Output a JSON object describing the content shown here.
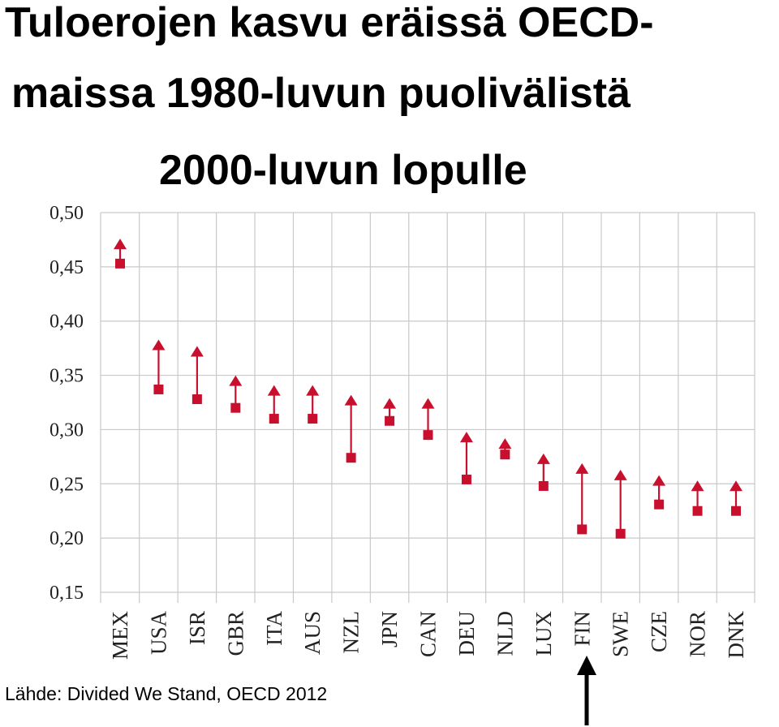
{
  "title_lines": [
    "Tuloerojen kasvu eräissä OECD-",
    "maissa 1980-luvun puolivälistä",
    "2000-luvun lopulle"
  ],
  "source": "Lähde: Divided We Stand, OECD 2012",
  "highlight": "FIN",
  "colors": {
    "marker": "#c8102e",
    "grid": "#c9c9c9",
    "text": "#000000",
    "highlight_arrow": "#000000"
  },
  "chart_data": {
    "type": "scatter",
    "categories": [
      "MEX",
      "USA",
      "ISR",
      "GBR",
      "ITA",
      "AUS",
      "NZL",
      "JPN",
      "CAN",
      "DEU",
      "NLD",
      "LUX",
      "FIN",
      "SWE",
      "CZE",
      "NOR",
      "DNK"
    ],
    "series": [
      {
        "values": [
          0.453,
          0.337,
          0.328,
          0.32,
          0.31,
          0.31,
          0.274,
          0.308,
          0.295,
          0.254,
          0.277,
          0.248,
          0.208,
          0.204,
          0.231,
          0.225,
          0.225
        ]
      },
      {
        "values": [
          0.476,
          0.383,
          0.377,
          0.35,
          0.341,
          0.341,
          0.332,
          0.329,
          0.329,
          0.298,
          0.292,
          0.278,
          0.269,
          0.263,
          0.258,
          0.253,
          0.253
        ]
      }
    ],
    "yticks": [
      "0,15",
      "0,20",
      "0,25",
      "0,30",
      "0,35",
      "0,40",
      "0,45",
      "0,50"
    ],
    "ylim": [
      0.15,
      0.5
    ],
    "grid": true
  }
}
